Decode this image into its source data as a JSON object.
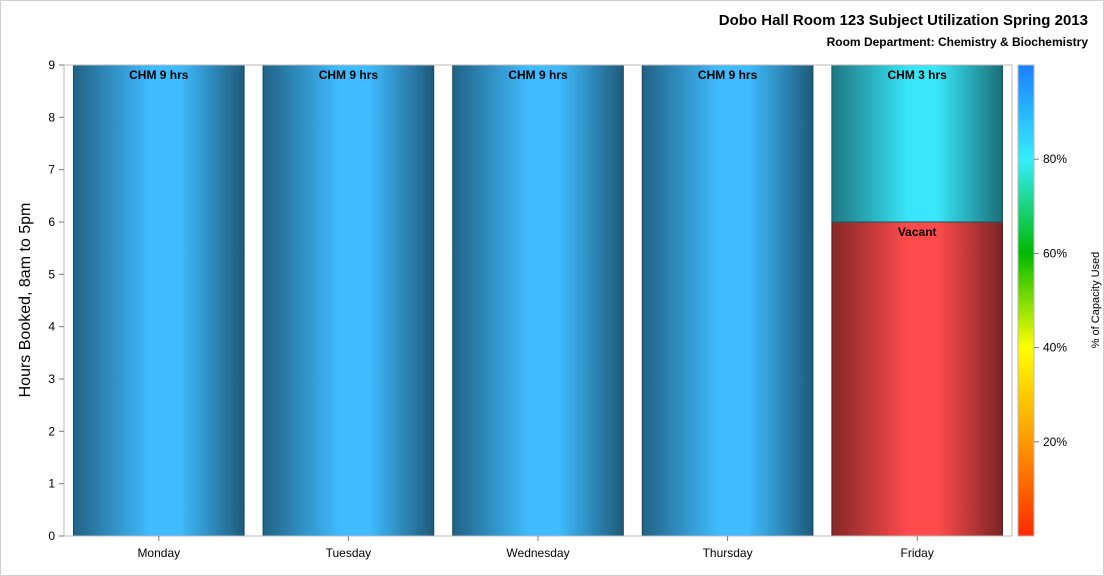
{
  "chart_data": {
    "type": "bar",
    "title": "Dobo Hall Room 123 Subject Utilization Spring 2013",
    "subtitle": "Room Department:  Chemistry & Biochemistry",
    "ylabel": "Hours Booked, 8am to 5pm",
    "xlabel": "",
    "ylim": [
      0,
      9
    ],
    "yticks": [
      "0",
      "1",
      "2",
      "3",
      "4",
      "5",
      "6",
      "7",
      "8",
      "9"
    ],
    "categories": [
      "Monday",
      "Tuesday",
      "Wednesday",
      "Thursday",
      "Friday"
    ],
    "segments": [
      [
        {
          "label": "CHM 9 hrs",
          "value": 9,
          "color": "#3fbcff"
        }
      ],
      [
        {
          "label": "CHM 9 hrs",
          "value": 9,
          "color": "#3fbcff"
        }
      ],
      [
        {
          "label": "CHM 9 hrs",
          "value": 9,
          "color": "#3fbcff"
        }
      ],
      [
        {
          "label": "CHM 9 hrs",
          "value": 9,
          "color": "#3fbcff"
        }
      ],
      [
        {
          "label": "Vacant",
          "value": 6,
          "color": "#ff4b4b"
        },
        {
          "label": "CHM 3 hrs",
          "value": 3,
          "color": "#37e6f8"
        }
      ]
    ],
    "colorbar": {
      "label": "% of Capacity Used",
      "ticks": [
        "20%",
        "40%",
        "60%",
        "80%"
      ],
      "tick_values": [
        20,
        40,
        60,
        80
      ],
      "range": [
        0,
        100
      ],
      "colors": [
        "#ff2a00",
        "#ff9900",
        "#ffff00",
        "#00bb00",
        "#33eeff",
        "#1a80ff"
      ]
    },
    "grid": false
  }
}
